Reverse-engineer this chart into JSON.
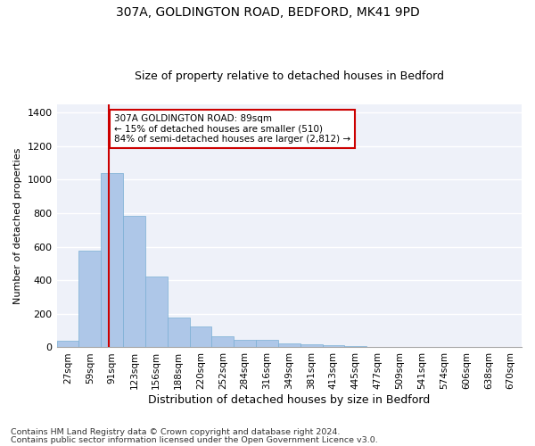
{
  "title1": "307A, GOLDINGTON ROAD, BEDFORD, MK41 9PD",
  "title2": "Size of property relative to detached houses in Bedford",
  "xlabel": "Distribution of detached houses by size in Bedford",
  "ylabel": "Number of detached properties",
  "categories": [
    "27sqm",
    "59sqm",
    "91sqm",
    "123sqm",
    "156sqm",
    "188sqm",
    "220sqm",
    "252sqm",
    "284sqm",
    "316sqm",
    "349sqm",
    "381sqm",
    "413sqm",
    "445sqm",
    "477sqm",
    "509sqm",
    "541sqm",
    "574sqm",
    "606sqm",
    "638sqm",
    "670sqm"
  ],
  "values": [
    40,
    575,
    1040,
    785,
    425,
    180,
    125,
    65,
    45,
    45,
    25,
    20,
    15,
    10,
    5,
    0,
    0,
    0,
    0,
    0,
    0
  ],
  "bar_color": "#aec7e8",
  "bar_edge_color": "#7bafd4",
  "ref_line_x": 1.87,
  "annotation_text": "307A GOLDINGTON ROAD: 89sqm\n← 15% of detached houses are smaller (510)\n84% of semi-detached houses are larger (2,812) →",
  "annotation_box_color": "#ffffff",
  "annotation_box_edge_color": "#cc0000",
  "ref_line_color": "#cc0000",
  "ylim": [
    0,
    1450
  ],
  "yticks": [
    0,
    200,
    400,
    600,
    800,
    1000,
    1200,
    1400
  ],
  "footer1": "Contains HM Land Registry data © Crown copyright and database right 2024.",
  "footer2": "Contains public sector information licensed under the Open Government Licence v3.0.",
  "background_color": "#eef1f9",
  "grid_color": "#ffffff",
  "title1_fontsize": 10,
  "title2_fontsize": 9,
  "xlabel_fontsize": 9,
  "ylabel_fontsize": 8,
  "xtick_fontsize": 7.5,
  "ytick_fontsize": 8,
  "annotation_fontsize": 7.5,
  "footer_fontsize": 6.8
}
